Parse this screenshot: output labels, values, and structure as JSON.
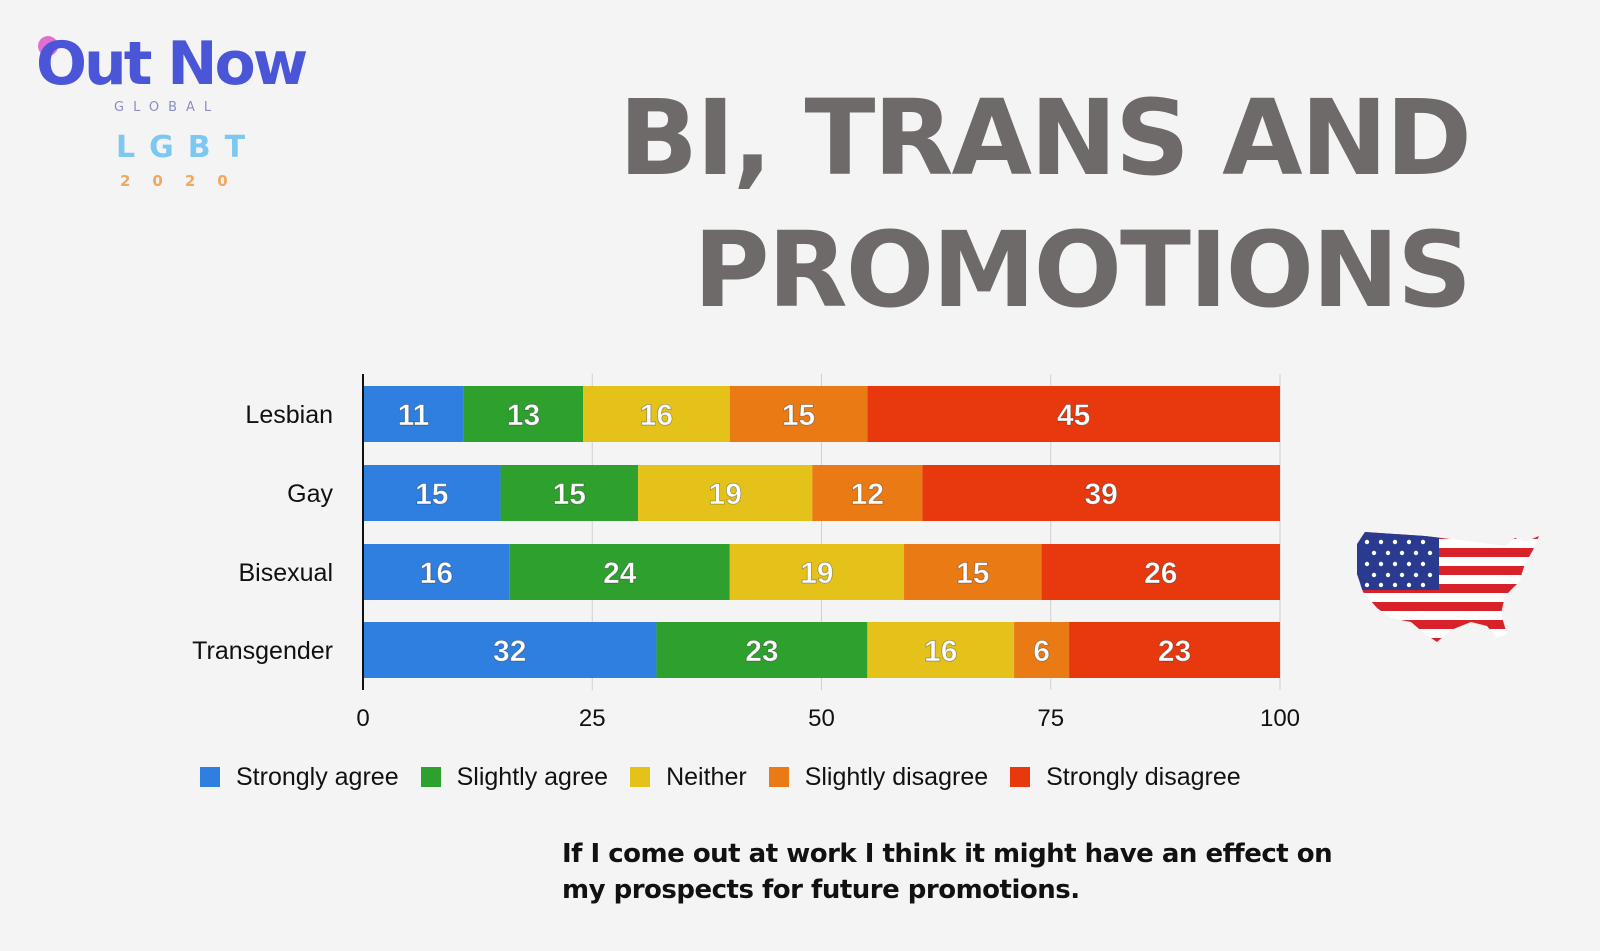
{
  "logo": {
    "brand": "Out Now",
    "sub": "GLOBAL",
    "tag": "LGBT",
    "year": "2020"
  },
  "title": "BI, TRANS AND PROMOTIONS",
  "caption": "If I come out at work I think it might have an effect on my prospects for future promotions.",
  "chart_data": {
    "type": "bar",
    "orientation": "horizontal",
    "stacked": true,
    "categories": [
      "Lesbian",
      "Gay",
      "Bisexual",
      "Transgender"
    ],
    "series": [
      {
        "name": "Strongly agree",
        "color": "#2f7fe0",
        "values": [
          11,
          15,
          16,
          32
        ]
      },
      {
        "name": "Slightly agree",
        "color": "#2ea02e",
        "values": [
          13,
          15,
          24,
          23
        ]
      },
      {
        "name": "Neither",
        "color": "#e4c21a",
        "values": [
          16,
          19,
          19,
          16
        ]
      },
      {
        "name": "Slightly disagree",
        "color": "#ea7a14",
        "values": [
          15,
          12,
          15,
          6
        ]
      },
      {
        "name": "Strongly disagree",
        "color": "#e8380e",
        "values": [
          45,
          39,
          26,
          23
        ]
      }
    ],
    "xlim": [
      0,
      100
    ],
    "xticks": [
      0,
      25,
      50,
      75,
      100
    ],
    "grid": true,
    "legend": "bottom"
  }
}
